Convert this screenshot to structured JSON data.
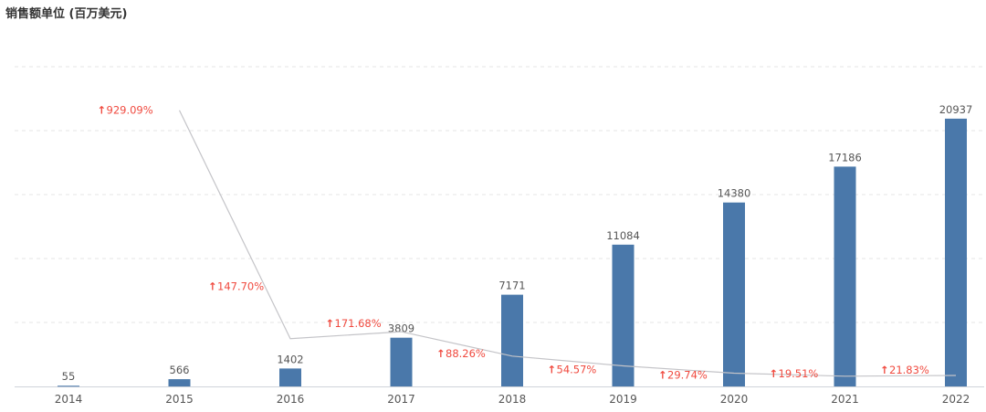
{
  "chart_data": {
    "type": "bar",
    "title": "销售额单位 (百万美元)",
    "categories": [
      "2014",
      "2015",
      "2016",
      "2017",
      "2018",
      "2019",
      "2020",
      "2021",
      "2022"
    ],
    "series": [
      {
        "values": [
          55,
          566,
          1402,
          3809,
          7171,
          11084,
          14380,
          17186,
          20937
        ]
      }
    ],
    "growth": {
      "values": [
        null,
        929.09,
        147.7,
        171.68,
        88.26,
        54.57,
        29.74,
        19.51,
        21.83
      ],
      "labels": [
        "",
        "929.09%",
        "147.70%",
        "171.68%",
        "88.26%",
        "54.57%",
        "29.74%",
        "19.51%",
        "21.83%"
      ]
    },
    "ylim": [
      0,
      25000
    ],
    "grid": true,
    "colors": {
      "bar": "#4a78aa",
      "line": "#c4c4c8",
      "growth": "#f04a3f",
      "grid": "#e6e6e6",
      "axis": "#cfd3da"
    }
  }
}
